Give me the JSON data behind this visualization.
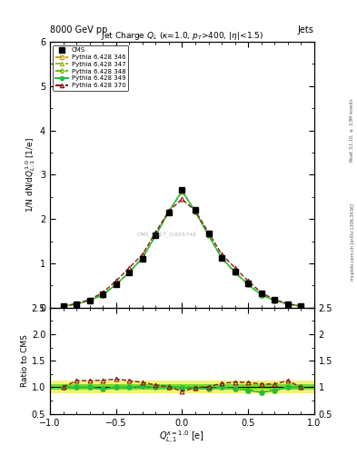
{
  "title_top_left": "8000 GeV pp",
  "title_top_right": "Jets",
  "plot_title": "Jet Charge $Q_L$ ($\\kappa$=1.0, $p_T$>400, $|\\eta|$<1.5)",
  "watermark": "CMS_2017_I1605749",
  "xlim": [
    -1,
    1
  ],
  "ylim_main": [
    0,
    6
  ],
  "ylim_ratio": [
    0.5,
    2.5
  ],
  "x_data": [
    -0.9,
    -0.8,
    -0.7,
    -0.6,
    -0.5,
    -0.4,
    -0.3,
    -0.2,
    -0.1,
    0.0,
    0.1,
    0.2,
    0.3,
    0.4,
    0.5,
    0.6,
    0.7,
    0.8,
    0.9
  ],
  "y_cms": [
    0.03,
    0.08,
    0.16,
    0.3,
    0.52,
    0.8,
    1.1,
    1.63,
    2.15,
    2.65,
    2.2,
    1.68,
    1.12,
    0.82,
    0.55,
    0.32,
    0.17,
    0.08,
    0.03
  ],
  "y_346": [
    0.03,
    0.08,
    0.16,
    0.29,
    0.52,
    0.8,
    1.12,
    1.63,
    2.17,
    2.62,
    2.17,
    1.63,
    1.12,
    0.8,
    0.52,
    0.29,
    0.16,
    0.08,
    0.03
  ],
  "y_347": [
    0.03,
    0.08,
    0.16,
    0.29,
    0.52,
    0.8,
    1.12,
    1.63,
    2.17,
    2.62,
    2.17,
    1.63,
    1.12,
    0.8,
    0.52,
    0.29,
    0.16,
    0.08,
    0.03
  ],
  "y_348": [
    0.03,
    0.08,
    0.16,
    0.29,
    0.52,
    0.8,
    1.12,
    1.63,
    2.17,
    2.63,
    2.17,
    1.63,
    1.12,
    0.8,
    0.52,
    0.29,
    0.16,
    0.08,
    0.03
  ],
  "y_349": [
    0.03,
    0.08,
    0.16,
    0.29,
    0.52,
    0.8,
    1.12,
    1.63,
    2.17,
    2.64,
    2.17,
    1.63,
    1.12,
    0.8,
    0.52,
    0.29,
    0.16,
    0.08,
    0.03
  ],
  "y_370": [
    0.03,
    0.09,
    0.18,
    0.34,
    0.6,
    0.9,
    1.2,
    1.7,
    2.18,
    2.45,
    2.18,
    1.7,
    1.2,
    0.9,
    0.6,
    0.34,
    0.18,
    0.09,
    0.03
  ],
  "r_346": [
    1.0,
    1.0,
    1.0,
    0.97,
    1.0,
    1.0,
    1.02,
    1.0,
    1.01,
    0.99,
    0.99,
    0.97,
    1.0,
    0.98,
    0.95,
    0.91,
    0.94,
    1.0,
    1.0
  ],
  "r_347": [
    1.0,
    1.0,
    1.0,
    0.97,
    1.0,
    1.0,
    1.02,
    1.0,
    1.01,
    0.99,
    0.99,
    0.97,
    1.0,
    0.98,
    0.95,
    0.91,
    0.94,
    1.0,
    1.0
  ],
  "r_348": [
    1.0,
    1.0,
    1.0,
    0.97,
    1.0,
    1.0,
    1.02,
    1.0,
    1.01,
    0.99,
    0.99,
    0.97,
    1.0,
    0.98,
    0.95,
    0.91,
    0.94,
    1.0,
    1.0
  ],
  "r_349": [
    1.0,
    1.0,
    1.0,
    0.97,
    1.0,
    1.0,
    1.02,
    1.0,
    1.01,
    0.99,
    0.99,
    0.97,
    1.0,
    0.98,
    0.95,
    0.91,
    0.94,
    1.0,
    1.0
  ],
  "r_370": [
    1.0,
    1.13,
    1.13,
    1.13,
    1.15,
    1.13,
    1.09,
    1.04,
    1.01,
    0.92,
    0.99,
    1.01,
    1.07,
    1.1,
    1.09,
    1.06,
    1.06,
    1.13,
    1.0
  ],
  "color_346": "#c8a030",
  "color_347": "#a8b828",
  "color_348": "#70c000",
  "color_349": "#20c040",
  "color_370": "#8b1a1a",
  "band_green": 0.05,
  "band_yellow": 0.12,
  "ylabel_main": "1/N dN/d$Q_{L,1}^{1.0}$ [1/e]",
  "ylabel_ratio": "Ratio to CMS",
  "xlabel": "$Q_{L,1}^{\\mathrm{kappa}=1.0}$ [e]",
  "right_text1": "Rivet 3.1.10, $\\geq$ 3.3M events",
  "right_text2": "mcplots.cern.ch [arXiv:1306.3436]"
}
